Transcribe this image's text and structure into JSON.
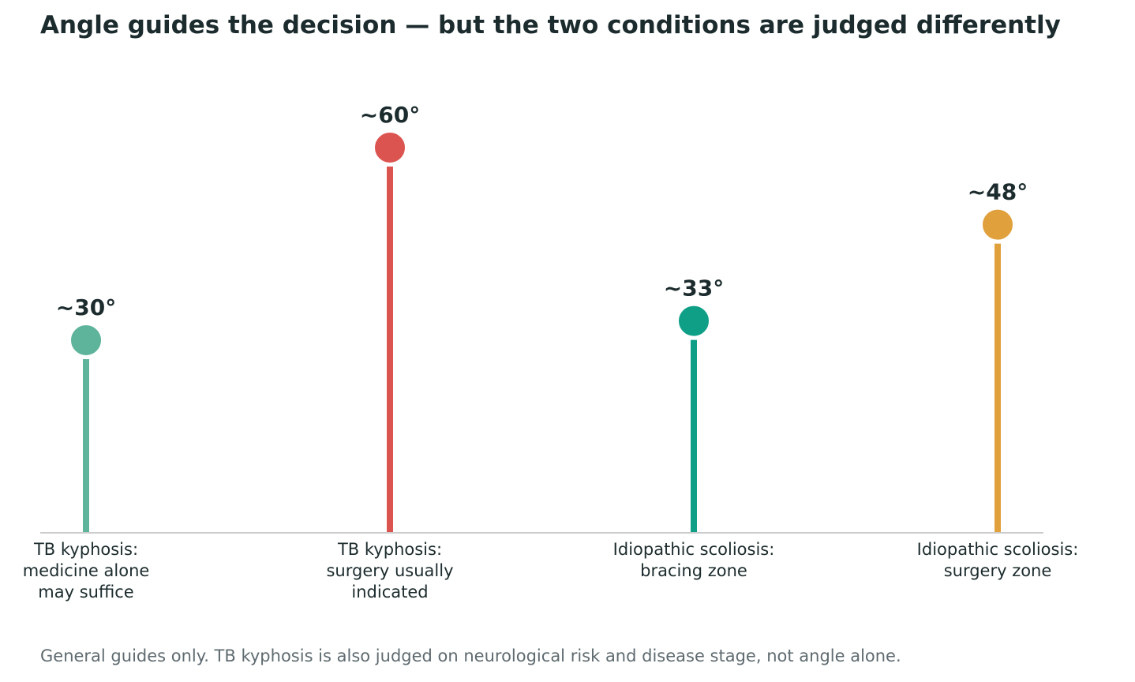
{
  "chart_data": {
    "type": "lollipop",
    "title": "Angle guides the decision — but the two conditions are judged differently",
    "footnote": "General guides only. TB kyphosis is also judged on neurological risk and disease stage, not angle alone.",
    "xlabel": "",
    "ylabel": "",
    "ylim": [
      0,
      68
    ],
    "grid": false,
    "categories": [
      [
        "TB kyphosis:",
        "medicine alone",
        "may suffice"
      ],
      [
        "TB kyphosis:",
        "surgery usually",
        "indicated"
      ],
      [
        "Idiopathic scoliosis:",
        "bracing zone"
      ],
      [
        "Idiopathic scoliosis:",
        "surgery zone"
      ]
    ],
    "values": [
      30,
      60,
      33,
      48
    ],
    "value_labels": [
      "~30°",
      "~60°",
      "~33°",
      "~48°"
    ],
    "colors": [
      "#5eb39b",
      "#dc5450",
      "#0f9f87",
      "#e0a03c"
    ],
    "baseline_color": "#cccccc",
    "label_color": "#1c2b2d"
  }
}
